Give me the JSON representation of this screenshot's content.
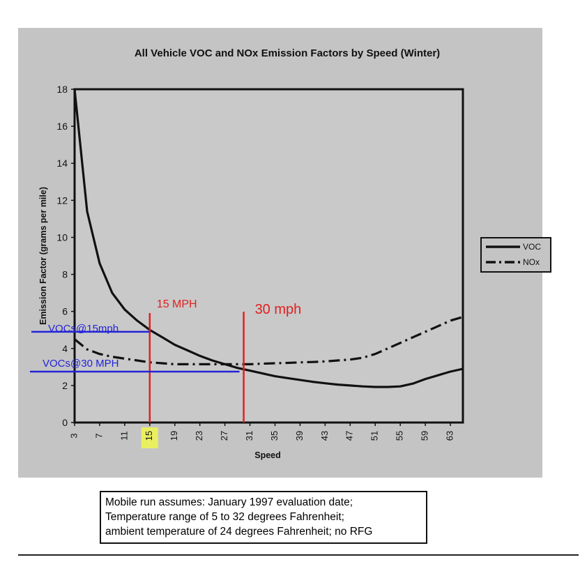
{
  "chart_data": {
    "type": "line",
    "title": "All Vehicle VOC and NOx Emission Factors by Speed (Winter)",
    "xlabel": "Speed",
    "ylabel": "Emission Factor (grams per mile)",
    "ylim": [
      0,
      18
    ],
    "xlim": [
      3,
      65
    ],
    "x_ticks": [
      3,
      7,
      11,
      15,
      19,
      23,
      27,
      31,
      35,
      39,
      43,
      47,
      51,
      55,
      59,
      63
    ],
    "y_ticks": [
      0,
      2,
      4,
      6,
      8,
      10,
      12,
      14,
      16,
      18
    ],
    "legend_position": "right",
    "grid": false,
    "series": [
      {
        "name": "VOC",
        "style": "solid",
        "x": [
          3,
          5,
          7,
          9,
          11,
          13,
          15,
          17,
          19,
          21,
          23,
          25,
          27,
          29,
          31,
          33,
          35,
          37,
          39,
          41,
          43,
          45,
          47,
          49,
          51,
          53,
          55,
          57,
          59,
          61,
          63,
          65
        ],
        "y": [
          18,
          11.4,
          8.6,
          7.0,
          6.1,
          5.5,
          5.0,
          4.6,
          4.2,
          3.9,
          3.6,
          3.35,
          3.15,
          2.95,
          2.8,
          2.65,
          2.5,
          2.4,
          2.3,
          2.2,
          2.12,
          2.05,
          2.0,
          1.95,
          1.92,
          1.92,
          1.95,
          2.1,
          2.35,
          2.55,
          2.75,
          2.9
        ]
      },
      {
        "name": "NOx",
        "style": "dashdot",
        "x": [
          3,
          5,
          7,
          9,
          11,
          13,
          15,
          17,
          19,
          21,
          23,
          25,
          27,
          29,
          31,
          33,
          35,
          37,
          39,
          41,
          43,
          45,
          47,
          49,
          51,
          53,
          55,
          57,
          59,
          61,
          63,
          65
        ],
        "y": [
          4.5,
          3.95,
          3.7,
          3.55,
          3.45,
          3.35,
          3.25,
          3.2,
          3.15,
          3.15,
          3.15,
          3.15,
          3.15,
          3.15,
          3.15,
          3.18,
          3.2,
          3.22,
          3.25,
          3.27,
          3.3,
          3.35,
          3.4,
          3.5,
          3.7,
          4.0,
          4.3,
          4.6,
          4.9,
          5.2,
          5.5,
          5.7
        ]
      }
    ],
    "annotations": {
      "speed_lines": [
        {
          "label": "15 MPH",
          "x": 15
        },
        {
          "label": "30 mph",
          "x": 30
        }
      ],
      "level_lines": [
        {
          "label": "VOCs@15mph",
          "y": 4.9
        },
        {
          "label": "VOCs@30 MPH",
          "y": 2.75
        }
      ],
      "highlighted_tick": 15
    },
    "footnote_lines": [
      "Mobile run assumes: January 1997 evaluation date;",
      "Temperature range of 5 to 32 degrees Fahrenheit;",
      "ambient temperature of 24 degrees Fahrenheit; no RFG"
    ],
    "colors": {
      "page": "#ffffff",
      "panel": "#c4c4c4",
      "plot": "#c9c9c9",
      "ink": "#111111",
      "red": "#e02020",
      "blue": "#2323d8",
      "highlight": "#e9ef60"
    }
  }
}
